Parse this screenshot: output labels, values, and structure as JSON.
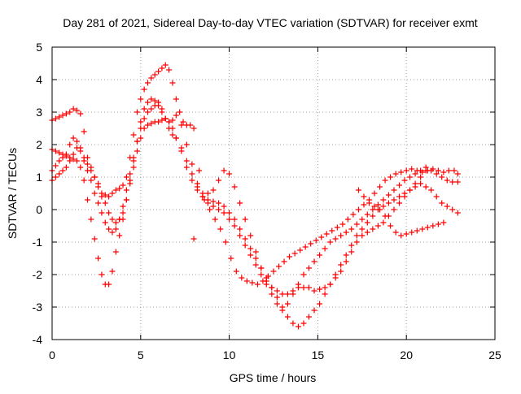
{
  "chart_data": {
    "type": "scatter",
    "title": "Day 281 of 2021, Sidereal Day-to-day VTEC variation (SDTVAR) for receiver exmt",
    "xlabel": "GPS time / hours",
    "ylabel": "SDTVAR / TECUs",
    "xlim": [
      0,
      25
    ],
    "ylim": [
      -4,
      5
    ],
    "xticks": [
      "0",
      "5",
      "10",
      "15",
      "20",
      "25"
    ],
    "yticks": [
      "-4",
      "-3",
      "-2",
      "-1",
      "0",
      "1",
      "2",
      "3",
      "4",
      "5"
    ],
    "grid": true,
    "marker": "+",
    "color": "#ff0000",
    "series": [
      {
        "x": [
          0.0,
          0.2,
          0.4,
          0.6,
          0.8,
          1.0,
          1.2,
          1.4,
          1.6,
          1.8,
          2.0,
          2.2,
          2.4,
          2.6,
          2.8,
          3.0,
          3.2,
          3.4,
          3.6,
          3.8,
          4.0,
          4.2,
          4.4,
          4.6,
          4.8,
          5.0,
          5.2,
          5.4,
          5.6,
          5.8,
          6.0,
          6.2,
          6.4,
          6.6,
          6.8,
          7.0,
          7.2,
          7.4,
          7.6,
          7.8,
          8.0,
          8.3,
          8.6,
          8.9,
          9.2,
          9.5,
          9.8,
          10.1,
          10.4,
          10.7,
          11.0,
          11.3,
          11.6,
          11.9,
          12.2,
          12.5,
          12.8,
          13.1,
          13.4,
          13.7,
          14.0,
          14.3,
          14.6,
          14.9,
          15.2,
          15.5,
          15.8,
          16.1,
          16.4,
          16.7,
          17.0,
          17.3,
          17.6,
          17.9,
          18.2,
          18.5,
          18.8,
          19.1,
          19.4,
          19.7,
          20.0,
          20.3,
          20.6,
          20.9,
          21.2,
          21.5,
          21.8,
          22.1,
          22.4,
          22.7,
          22.9
        ],
        "y": [
          2.75,
          2.8,
          2.85,
          2.9,
          2.95,
          3.0,
          3.1,
          3.05,
          2.95,
          2.4,
          1.6,
          1.3,
          1.0,
          0.7,
          0.4,
          0.45,
          0.4,
          0.5,
          0.6,
          0.65,
          0.75,
          1.0,
          1.6,
          2.3,
          3.0,
          3.4,
          3.7,
          3.9,
          4.05,
          4.15,
          4.25,
          4.35,
          4.45,
          4.3,
          3.9,
          3.4,
          3.0,
          2.7,
          2.6,
          2.6,
          2.5,
          1.2,
          0.3,
          0.0,
          -0.3,
          -0.6,
          -1.0,
          -1.5,
          -1.9,
          -2.1,
          -2.2,
          -2.25,
          -2.3,
          -2.2,
          -2.05,
          -1.9,
          -1.75,
          -1.6,
          -1.45,
          -1.35,
          -1.25,
          -1.15,
          -1.05,
          -0.95,
          -0.85,
          -0.75,
          -0.65,
          -0.55,
          -0.45,
          -0.3,
          -0.15,
          0.0,
          0.15,
          0.3,
          0.5,
          0.7,
          0.9,
          1.0,
          1.1,
          1.15,
          1.2,
          1.25,
          1.2,
          1.15,
          1.2,
          1.25,
          1.2,
          1.15,
          1.2,
          1.2,
          1.1
        ]
      },
      {
        "x": [
          0.0,
          0.2,
          0.4,
          0.6,
          0.8,
          1.0,
          1.2,
          1.4,
          1.6,
          1.8,
          2.0,
          2.2,
          2.4,
          2.6,
          2.8,
          3.0,
          3.2,
          3.4,
          3.6,
          3.8,
          4.0,
          4.2,
          4.4,
          4.6,
          4.8,
          5.0,
          5.2,
          5.4,
          5.6,
          5.8,
          6.0,
          6.2,
          6.4,
          6.6,
          6.8,
          7.0,
          7.3,
          7.6,
          7.9,
          8.2,
          8.5,
          8.8,
          9.1,
          9.4,
          9.7,
          10.0,
          10.3,
          10.6,
          10.9,
          11.2,
          11.5,
          11.8,
          12.1,
          12.4,
          12.7,
          13.0,
          13.3,
          13.6,
          13.9,
          14.2,
          14.5,
          14.8,
          15.1,
          15.4,
          15.7,
          16.0,
          16.3,
          16.6,
          16.9,
          17.2,
          17.5,
          17.8,
          18.1,
          18.4,
          18.7,
          19.0,
          19.3,
          19.6,
          19.9,
          20.2,
          20.5,
          20.8,
          21.1,
          21.4,
          21.7,
          22.0,
          22.3,
          22.6,
          22.9
        ],
        "y": [
          1.85,
          1.8,
          1.75,
          1.7,
          1.65,
          1.6,
          1.55,
          1.5,
          1.3,
          0.9,
          0.3,
          -0.3,
          -0.9,
          -1.5,
          -2.0,
          -2.3,
          -2.3,
          -1.9,
          -1.3,
          -0.8,
          -0.3,
          0.3,
          0.9,
          1.5,
          2.1,
          2.7,
          3.1,
          3.3,
          3.4,
          3.35,
          3.2,
          3.0,
          2.8,
          2.7,
          2.75,
          2.9,
          2.6,
          2.0,
          1.4,
          0.8,
          0.5,
          0.5,
          0.6,
          0.9,
          1.2,
          1.1,
          0.7,
          0.2,
          -0.3,
          -0.8,
          -1.3,
          -1.8,
          -2.3,
          -2.6,
          -2.9,
          -3.1,
          -2.9,
          -2.6,
          -2.3,
          -2.0,
          -1.8,
          -1.6,
          -1.4,
          -1.2,
          -1.0,
          -0.9,
          -0.8,
          -0.7,
          -0.6,
          -0.45,
          -0.3,
          -0.15,
          0.0,
          0.15,
          0.3,
          0.45,
          0.6,
          0.75,
          0.9,
          1.0,
          1.1,
          1.2,
          1.3,
          1.2,
          1.1,
          1.0,
          0.9,
          0.85,
          0.85
        ]
      },
      {
        "x": [
          0.0,
          0.2,
          0.4,
          0.6,
          0.8,
          1.0,
          1.2,
          1.4,
          1.6,
          1.8,
          2.0,
          2.2,
          2.4,
          2.6,
          2.8,
          3.0,
          3.2,
          3.4,
          3.6,
          3.8,
          4.0,
          4.2,
          4.4,
          4.6,
          4.8,
          5.0,
          5.2,
          5.4,
          5.6,
          5.8,
          6.0,
          6.2,
          6.4,
          6.6,
          6.8,
          7.0,
          7.3,
          7.6,
          7.9,
          8.2,
          8.5,
          8.8,
          9.1,
          9.4,
          9.7,
          10.0,
          10.3,
          10.6,
          10.9,
          11.2,
          11.5,
          11.8,
          12.1,
          12.4,
          12.7,
          13.0,
          13.3,
          13.6,
          13.9,
          14.2,
          14.5,
          14.8,
          15.1,
          15.4,
          15.7,
          16.0,
          16.3,
          16.6,
          16.9,
          17.2,
          17.5,
          17.8,
          18.1,
          18.4,
          18.7,
          19.0,
          19.3,
          19.6,
          19.9,
          20.2,
          20.5,
          20.8,
          21.1,
          21.4,
          21.7,
          22.0,
          22.3,
          22.6,
          22.9
        ],
        "y": [
          1.2,
          1.35,
          1.5,
          1.6,
          1.7,
          2.0,
          2.2,
          2.1,
          1.9,
          1.6,
          1.4,
          1.2,
          1.0,
          0.8,
          0.5,
          0.2,
          -0.1,
          -0.3,
          -0.4,
          -0.3,
          -0.1,
          0.3,
          0.8,
          1.3,
          1.8,
          2.2,
          2.5,
          2.6,
          2.65,
          2.7,
          2.7,
          2.75,
          2.8,
          2.7,
          2.5,
          2.2,
          1.8,
          1.3,
          0.9,
          0.6,
          0.4,
          0.3,
          0.25,
          0.2,
          0.1,
          -0.1,
          -0.3,
          -0.6,
          -0.9,
          -1.2,
          -1.5,
          -1.8,
          -2.1,
          -2.4,
          -2.7,
          -3.0,
          -3.3,
          -3.5,
          -3.6,
          -3.5,
          -3.3,
          -3.1,
          -2.9,
          -2.6,
          -2.3,
          -2.0,
          -1.7,
          -1.4,
          -1.1,
          -0.8,
          -0.6,
          -0.4,
          -0.2,
          0.0,
          0.1,
          0.2,
          0.3,
          0.4,
          0.5,
          0.6,
          0.7,
          0.8,
          0.7,
          0.6,
          0.4,
          0.2,
          0.1,
          0.0,
          -0.1
        ]
      },
      {
        "x": [
          0.0,
          0.2,
          0.4,
          0.6,
          0.8,
          1.0,
          1.2,
          1.4,
          1.6,
          1.8,
          2.0,
          2.2,
          2.4,
          2.6,
          2.8,
          3.0,
          3.2,
          3.4,
          3.6,
          3.8,
          4.0,
          4.2,
          4.4,
          4.6,
          4.8,
          5.0,
          5.2,
          5.4,
          5.6,
          5.8,
          6.0,
          6.2,
          6.4,
          6.6,
          6.8,
          7.0,
          7.3,
          7.6,
          7.9,
          8.2,
          8.5,
          8.8,
          9.1,
          9.4,
          9.7,
          10.0,
          10.3,
          10.6,
          10.9,
          11.2,
          11.5,
          11.8,
          12.1,
          12.4,
          12.7,
          13.0,
          13.3,
          13.6,
          13.9,
          14.2,
          14.5,
          14.8,
          15.1,
          15.4,
          15.7,
          16.0,
          16.3,
          16.6,
          16.9,
          17.2,
          17.5,
          17.8,
          18.1,
          18.4,
          18.7,
          19.0,
          19.3,
          19.6,
          19.9,
          20.2,
          20.5,
          20.8,
          21.1
        ],
        "y": [
          0.9,
          1.0,
          1.1,
          1.2,
          1.3,
          1.5,
          1.7,
          1.9,
          1.8,
          1.5,
          1.2,
          0.9,
          0.5,
          0.2,
          -0.1,
          -0.4,
          -0.6,
          -0.7,
          -0.6,
          -0.3,
          0.1,
          0.6,
          1.1,
          1.6,
          2.1,
          2.5,
          2.8,
          3.0,
          3.1,
          3.2,
          3.3,
          3.1,
          2.8,
          2.5,
          2.3,
          2.2,
          1.9,
          1.5,
          1.1,
          0.7,
          0.4,
          0.2,
          0.1,
          0.0,
          -0.1,
          -0.3,
          -0.5,
          -0.8,
          -1.1,
          -1.4,
          -1.7,
          -2.0,
          -2.2,
          -2.4,
          -2.5,
          -2.6,
          -2.6,
          -2.5,
          -2.4,
          -2.4,
          -2.4,
          -2.5,
          -2.45,
          -2.4,
          -2.3,
          -2.1,
          -1.9,
          -1.6,
          -1.3,
          -1.0,
          -0.8,
          -0.7,
          -0.6,
          -0.5,
          -0.4,
          -0.2,
          0.0,
          0.2,
          0.4,
          0.6,
          0.8,
          1.0,
          1.2
        ]
      },
      {
        "x": [
          17.3,
          17.6,
          17.9,
          18.2,
          18.5,
          18.8,
          19.1,
          19.4,
          19.7,
          20.0,
          20.3,
          20.6,
          20.9,
          21.2,
          21.5,
          21.8,
          22.1
        ],
        "y": [
          0.6,
          0.4,
          0.2,
          0.1,
          0.0,
          -0.2,
          -0.5,
          -0.7,
          -0.8,
          -0.75,
          -0.7,
          -0.65,
          -0.6,
          -0.55,
          -0.5,
          -0.45,
          -0.4
        ]
      },
      {
        "x": [
          8.0
        ],
        "y": [
          -0.9
        ]
      }
    ]
  }
}
